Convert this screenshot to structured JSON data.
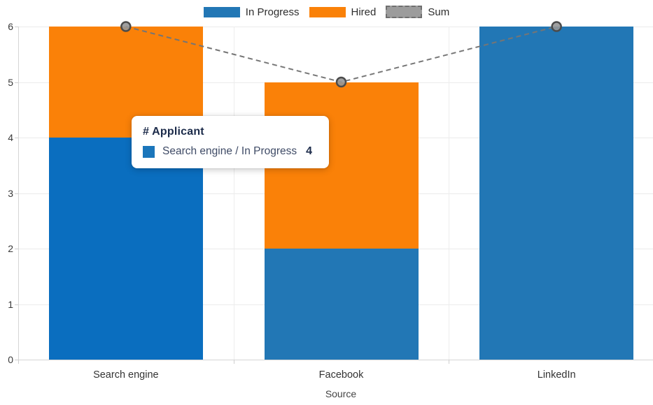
{
  "chart_data": {
    "type": "bar",
    "stacked": true,
    "orientation": "vertical",
    "title": "",
    "categories": [
      "Search engine",
      "Facebook",
      "LinkedIn"
    ],
    "series": [
      {
        "name": "In Progress",
        "kind": "bar",
        "values": [
          4,
          2,
          6
        ],
        "color": "#2277b5",
        "legend_swatch_color": "#2277b5"
      },
      {
        "name": "Hired",
        "kind": "bar",
        "values": [
          2,
          3,
          0
        ],
        "color": "#fa8108",
        "legend_swatch_color": "#fa8108"
      },
      {
        "name": "Sum",
        "kind": "line",
        "values": [
          6,
          5,
          6
        ],
        "color": "#757575",
        "line_style": "dashed",
        "marker": "circle",
        "marker_fill": "#969696",
        "marker_stroke": "#4b4b4b",
        "legend_swatch_color": "#9c9c9c",
        "legend_swatch_style": "dashed"
      }
    ],
    "xlabel": "Source",
    "ylabel": "",
    "ylim": [
      0,
      6
    ],
    "yticks": [
      0,
      1,
      2,
      3,
      4,
      5,
      6
    ],
    "grid": true,
    "legend_position": "top",
    "highlight": {
      "category": "Search engine",
      "series": "In Progress",
      "color": "#0a6ebf"
    }
  },
  "tooltip": {
    "title": "# Applicant",
    "series_label": "Search engine / In Progress",
    "value": "4",
    "swatch_color": "#1b76bb"
  }
}
